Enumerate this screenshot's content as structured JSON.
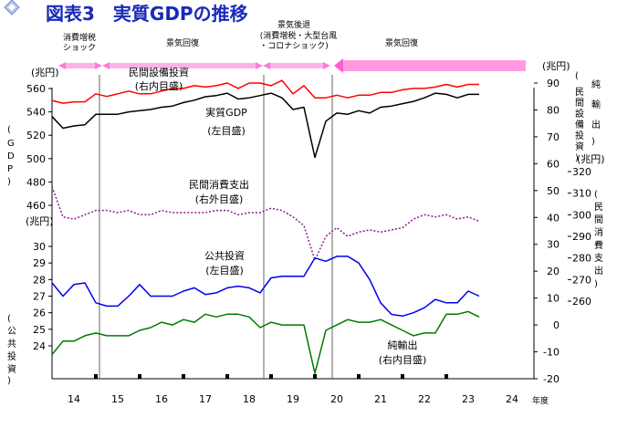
{
  "title": "図表3　実質GDPの推移",
  "chart_data": {
    "type": "line",
    "title": "図表3　実質GDPの推移",
    "x_ticks": [
      "14",
      "15",
      "16",
      "17",
      "18",
      "19",
      "20",
      "21",
      "22",
      "23",
      "24"
    ],
    "x_unit": "年度",
    "x_range": [
      2014,
      2025
    ],
    "phases": [
      "消費増税\nショック",
      "景気回復",
      "景気後退\n(消費増税・大型台風\n・コロナショック)",
      "景気回復"
    ],
    "left_axes": [
      {
        "name": "GDP",
        "unit": "兆円",
        "ticks": [
          "560",
          "540",
          "520",
          "500",
          "480",
          "460"
        ],
        "range": [
          460,
          560
        ]
      },
      {
        "name": "公共投資",
        "unit": "兆円",
        "ticks": [
          "30",
          "29",
          "28",
          "27",
          "26",
          "25",
          "24"
        ],
        "range": [
          24,
          30
        ]
      }
    ],
    "right_axes": [
      {
        "name": "純輸出 民間設備投資",
        "unit": "兆円",
        "ticks": [
          "90",
          "80",
          "70",
          "60",
          "50",
          "40",
          "30",
          "20",
          "10",
          "0",
          "-10",
          "-20"
        ],
        "range": [
          -20,
          90
        ]
      },
      {
        "name": "民間消費支出",
        "unit": "兆円",
        "ticks": [
          "320",
          "310",
          "300",
          "290",
          "280",
          "270",
          "260"
        ],
        "range": [
          260,
          320
        ]
      }
    ],
    "series": [
      {
        "name": "民間設備投資\n(右内目盛)",
        "color": "#ff0000",
        "axis": "right-inner",
        "x": [
          2014.0,
          2014.25,
          2014.5,
          2014.75,
          2015.0,
          2015.25,
          2015.5,
          2015.75,
          2016.0,
          2016.25,
          2016.5,
          2016.75,
          2017.0,
          2017.25,
          2017.5,
          2017.75,
          2018.0,
          2018.25,
          2018.5,
          2018.75,
          2019.0,
          2019.25,
          2019.5,
          2019.75,
          2020.0,
          2020.25,
          2020.5,
          2020.75,
          2021.0,
          2021.25,
          2021.5,
          2021.75,
          2022.0,
          2022.25,
          2022.5,
          2022.75,
          2023.0,
          2023.25,
          2023.5,
          2023.75
        ],
        "values": [
          83.5,
          82.5,
          83.0,
          83.0,
          86.0,
          85.0,
          86.0,
          87.0,
          86.0,
          86.0,
          87.0,
          88.0,
          88.0,
          89.0,
          88.5,
          89.0,
          90.0,
          88.0,
          90.0,
          90.0,
          89.0,
          91.0,
          86.0,
          89.0,
          84.5,
          84.5,
          85.5,
          84.5,
          85.5,
          85.5,
          86.5,
          86.5,
          87.5,
          88.0,
          88.0,
          88.5,
          89.5,
          88.5,
          89.5,
          89.5
        ]
      },
      {
        "name": "実質GDP\n(左目盛)",
        "color": "#000000",
        "axis": "left-outer",
        "x": [
          2014.0,
          2014.25,
          2014.5,
          2014.75,
          2015.0,
          2015.25,
          2015.5,
          2015.75,
          2016.0,
          2016.25,
          2016.5,
          2016.75,
          2017.0,
          2017.25,
          2017.5,
          2017.75,
          2018.0,
          2018.25,
          2018.5,
          2018.75,
          2019.0,
          2019.25,
          2019.5,
          2019.75,
          2020.0,
          2020.25,
          2020.5,
          2020.75,
          2021.0,
          2021.25,
          2021.5,
          2021.75,
          2022.0,
          2022.25,
          2022.5,
          2022.75,
          2023.0,
          2023.25,
          2023.5,
          2023.75
        ],
        "values": [
          536,
          526,
          528,
          529,
          538,
          538,
          538,
          540,
          541,
          542,
          544,
          545,
          548,
          550,
          553,
          554,
          556,
          551,
          552,
          554,
          556,
          552,
          542,
          544,
          501,
          532,
          539,
          538,
          541,
          539,
          544,
          545,
          547,
          549,
          552,
          556,
          555,
          552,
          555,
          555
        ]
      },
      {
        "name": "民間消費支出\n(右外目盛)",
        "color": "#8b1a8b",
        "axis": "right-outer",
        "x": [
          2014.0,
          2014.25,
          2014.5,
          2014.75,
          2015.0,
          2015.25,
          2015.5,
          2015.75,
          2016.0,
          2016.25,
          2016.5,
          2016.75,
          2017.0,
          2017.25,
          2017.5,
          2017.75,
          2018.0,
          2018.25,
          2018.5,
          2018.75,
          2019.0,
          2019.25,
          2019.5,
          2019.75,
          2020.0,
          2020.25,
          2020.5,
          2020.75,
          2021.0,
          2021.25,
          2021.5,
          2021.75,
          2022.0,
          2022.25,
          2022.5,
          2022.75,
          2023.0,
          2023.25,
          2023.5,
          2023.75
        ],
        "values": [
          313,
          299,
          298,
          300,
          302,
          302,
          301,
          302,
          300,
          300,
          302,
          301,
          301,
          301,
          301,
          302,
          302,
          300,
          301,
          301,
          303,
          302,
          299,
          295,
          279,
          290,
          294,
          290,
          292,
          293,
          292,
          293,
          294,
          298,
          300,
          299,
          300,
          298,
          299,
          297
        ]
      },
      {
        "name": "公共投資\n(左目盛)",
        "color": "#0000ee",
        "axis": "left-inner",
        "x": [
          2014.0,
          2014.25,
          2014.5,
          2014.75,
          2015.0,
          2015.25,
          2015.5,
          2015.75,
          2016.0,
          2016.25,
          2016.5,
          2016.75,
          2017.0,
          2017.25,
          2017.5,
          2017.75,
          2018.0,
          2018.25,
          2018.5,
          2018.75,
          2019.0,
          2019.25,
          2019.5,
          2019.75,
          2020.0,
          2020.25,
          2020.5,
          2020.75,
          2021.0,
          2021.25,
          2021.5,
          2021.75,
          2022.0,
          2022.25,
          2022.5,
          2022.75,
          2023.0,
          2023.25,
          2023.5,
          2023.75
        ],
        "values": [
          27.8,
          27.0,
          27.7,
          27.8,
          26.6,
          26.4,
          26.4,
          27.0,
          27.7,
          27.0,
          27.0,
          27.0,
          27.3,
          27.5,
          27.1,
          27.2,
          27.5,
          27.6,
          27.5,
          27.2,
          28.1,
          28.2,
          28.2,
          28.2,
          29.3,
          29.1,
          29.4,
          29.4,
          29.0,
          28.0,
          26.6,
          25.9,
          25.8,
          26.0,
          26.3,
          26.8,
          26.6,
          26.6,
          27.3,
          27.0
        ]
      },
      {
        "name": "純輸出\n(右内目盛)",
        "color": "#007a00",
        "axis": "right-inner",
        "x": [
          2014.0,
          2014.25,
          2014.5,
          2014.75,
          2015.0,
          2015.25,
          2015.5,
          2015.75,
          2016.0,
          2016.25,
          2016.5,
          2016.75,
          2017.0,
          2017.25,
          2017.5,
          2017.75,
          2018.0,
          2018.25,
          2018.5,
          2018.75,
          2019.0,
          2019.25,
          2019.5,
          2019.75,
          2020.0,
          2020.25,
          2020.5,
          2020.75,
          2021.0,
          2021.25,
          2021.5,
          2021.75,
          2022.0,
          2022.25,
          2022.5,
          2022.75,
          2023.0,
          2023.25,
          2023.5,
          2023.75
        ],
        "values": [
          -11,
          -6,
          -6,
          -4,
          -3,
          -4,
          -4,
          -4,
          -2,
          -1,
          1,
          0,
          2,
          1,
          4,
          3,
          4,
          4,
          3,
          -1,
          1,
          0,
          0,
          0,
          -18,
          -2,
          0,
          2,
          1,
          1,
          2,
          0,
          -2,
          -4,
          -3,
          -3,
          4,
          4,
          5,
          3
        ]
      }
    ]
  }
}
